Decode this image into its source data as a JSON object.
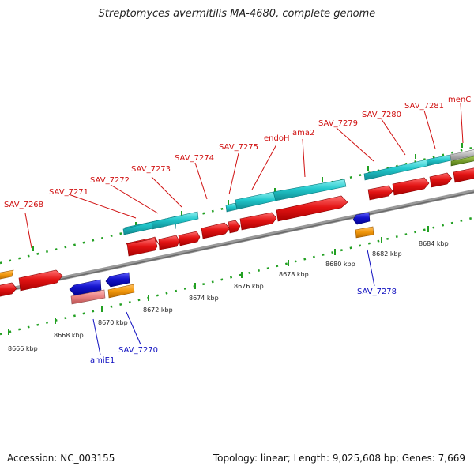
{
  "title": "Streptomyces avermitilis MA-4680, complete genome",
  "footer": {
    "accession": "Accession: NC_003155",
    "summary": "Topology: linear; Length: 9,025,608 bp; Genes: 7,669"
  },
  "colors": {
    "forward_gene": "#e31414",
    "reverse_gene": "#1414cc",
    "cds_cyan": "#22c8cc",
    "orange": "#f0960a",
    "pink": "#e88080",
    "gray": "#b8b8b8",
    "olive": "#7aa030",
    "top_label": "#d01010",
    "bottom_label": "#1010c0",
    "track_dots": "#22a022",
    "backbone": "#8c8c8c"
  },
  "scale_labels": [
    "8666 kbp",
    "8668 kbp",
    "8670 kbp",
    "8672 kbp",
    "8674 kbp",
    "8676 kbp",
    "8678 kbp",
    "8680 kbp",
    "8682 kbp",
    "8684 kbp"
  ],
  "top_labels": [
    "SAV_7268",
    "SAV_7271",
    "SAV_7272",
    "SAV_7273",
    "SAV_7274",
    "SAV_7275",
    "endoH",
    "ama2",
    "SAV_7279",
    "SAV_7280",
    "SAV_7281",
    "menC"
  ],
  "bottom_labels": [
    "amiE1",
    "SAV_7270",
    "SAV_7278"
  ]
}
